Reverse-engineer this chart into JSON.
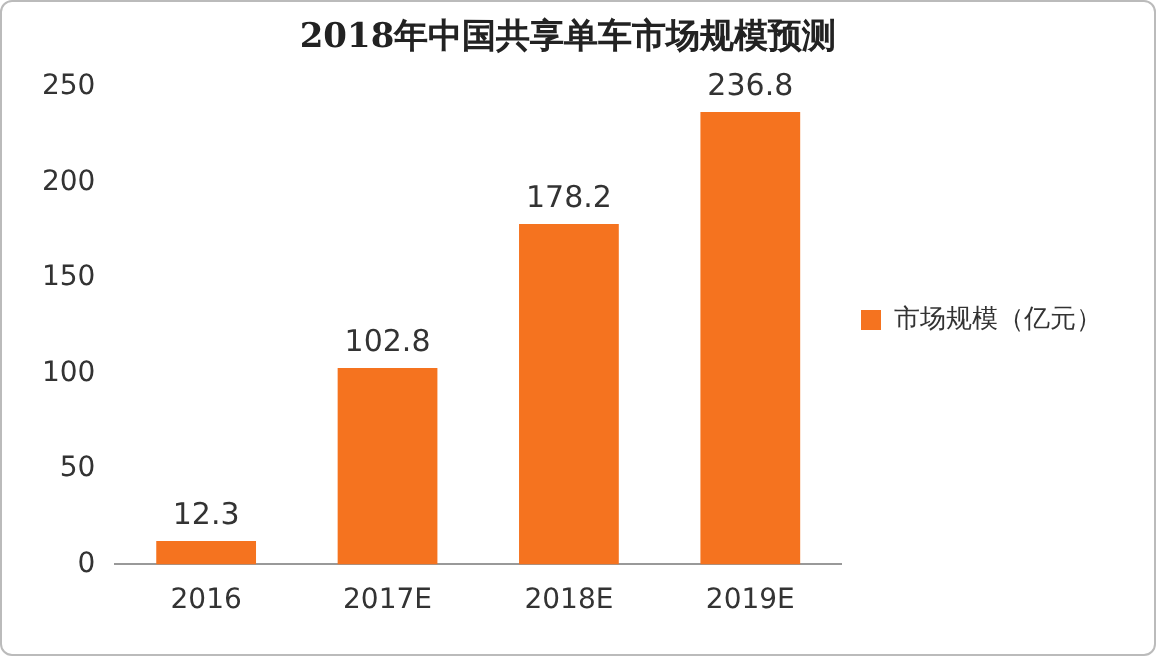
{
  "chart_data": {
    "type": "bar",
    "title": "2018年中国共享单车市场规模预测",
    "categories": [
      "2016",
      "2017E",
      "2018E",
      "2019E"
    ],
    "series": [
      {
        "name": "市场规模（亿元）",
        "color": "#f5731f",
        "values": [
          12.3,
          102.8,
          178.2,
          236.8
        ]
      }
    ],
    "ylim": [
      0,
      250
    ],
    "yticks": [
      0,
      50,
      100,
      150,
      200,
      250
    ],
    "grid": false,
    "legend": "right",
    "data_labels": true
  }
}
